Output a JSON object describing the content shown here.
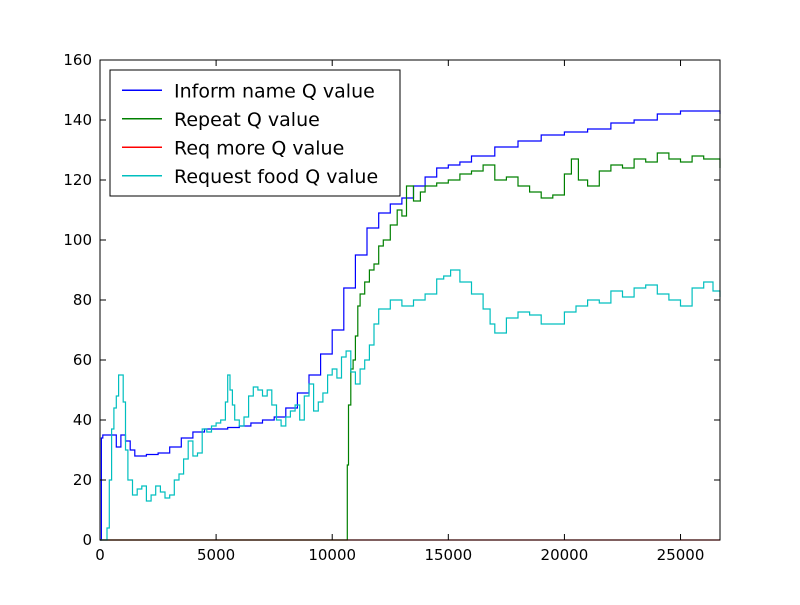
{
  "chart_data": {
    "type": "line",
    "title": "",
    "xlabel": "",
    "ylabel": "",
    "xlim": [
      0,
      26700
    ],
    "ylim": [
      0,
      160
    ],
    "grid": false,
    "legend_position": "top-left",
    "x_ticks": [
      0,
      5000,
      10000,
      15000,
      20000,
      25000
    ],
    "y_ticks": [
      0,
      20,
      40,
      60,
      80,
      100,
      120,
      140,
      160
    ],
    "x_tick_labels": [
      "0",
      "5000",
      "10000",
      "15000",
      "20000",
      "25000"
    ],
    "y_tick_labels": [
      "0",
      "20",
      "40",
      "60",
      "80",
      "100",
      "120",
      "140",
      "160"
    ],
    "series": [
      {
        "name": "Inform name Q value",
        "color": "#0000ff",
        "x": [
          0,
          60,
          120,
          300,
          500,
          700,
          900,
          1100,
          1300,
          1500,
          2000,
          2500,
          3000,
          3500,
          4000,
          4500,
          5000,
          5500,
          6000,
          6500,
          7000,
          7500,
          8000,
          8500,
          9000,
          9500,
          10000,
          10500,
          11000,
          11500,
          12000,
          12500,
          13000,
          13500,
          14000,
          14500,
          15000,
          15500,
          16000,
          17000,
          18000,
          19000,
          20000,
          21000,
          22000,
          23000,
          24000,
          25000,
          25500,
          26000,
          26700
        ],
        "y": [
          0,
          34,
          35,
          35,
          35,
          31,
          35,
          33,
          30,
          28,
          28.5,
          29,
          31,
          34,
          36,
          37,
          37,
          37.5,
          38,
          39,
          40,
          41,
          44,
          49,
          55,
          62,
          70,
          84,
          95,
          104,
          109,
          112,
          114,
          118,
          121,
          124,
          125,
          126,
          128,
          131,
          133,
          135,
          136,
          137,
          139,
          140,
          142,
          143,
          143,
          143,
          142
        ]
      },
      {
        "name": "Repeat Q value",
        "color": "#008000",
        "x": [
          0,
          10500,
          10600,
          10650,
          10700,
          10800,
          10900,
          11000,
          11100,
          11200,
          11400,
          11600,
          11800,
          12000,
          12200,
          12500,
          12800,
          13000,
          13200,
          13500,
          13800,
          14000,
          14500,
          15000,
          15500,
          16000,
          16500,
          17000,
          17500,
          18000,
          18500,
          19000,
          19500,
          20000,
          20300,
          20600,
          21000,
          21500,
          22000,
          22500,
          23000,
          23500,
          24000,
          24500,
          25000,
          25500,
          26000,
          26700
        ],
        "y": [
          0,
          0,
          0,
          25,
          45,
          57,
          60,
          68,
          78,
          82,
          86,
          90,
          92,
          98,
          100,
          105,
          110,
          108,
          118,
          113,
          116,
          118,
          119,
          120,
          122,
          123,
          125,
          120,
          121,
          118,
          116,
          114,
          115,
          122,
          127,
          120,
          118,
          123,
          125,
          124,
          127,
          126,
          129,
          127,
          126,
          128,
          127,
          124
        ]
      },
      {
        "name": "Req more Q value",
        "color": "#ff0000",
        "x": [
          0,
          26700
        ],
        "y": [
          0,
          0
        ]
      },
      {
        "name": "Request food Q value",
        "color": "#00bfbf",
        "x": [
          0,
          120,
          300,
          400,
          500,
          600,
          700,
          800,
          900,
          1000,
          1100,
          1200,
          1400,
          1600,
          1800,
          2000,
          2200,
          2400,
          2600,
          2800,
          3000,
          3200,
          3400,
          3600,
          3800,
          4000,
          4200,
          4400,
          4600,
          4800,
          5000,
          5200,
          5400,
          5500,
          5600,
          5700,
          5800,
          6000,
          6200,
          6400,
          6600,
          6800,
          7000,
          7200,
          7400,
          7600,
          7800,
          8000,
          8200,
          8400,
          8600,
          8800,
          9000,
          9200,
          9400,
          9600,
          9800,
          10000,
          10200,
          10400,
          10600,
          10800,
          11000,
          11200,
          11400,
          11600,
          11800,
          12000,
          12500,
          13000,
          13500,
          14000,
          14500,
          14800,
          15100,
          15500,
          16000,
          16500,
          16800,
          17000,
          17500,
          18000,
          18500,
          19000,
          19500,
          20000,
          20500,
          21000,
          21500,
          22000,
          22500,
          23000,
          23500,
          24000,
          24500,
          25000,
          25500,
          26000,
          26400,
          26700
        ],
        "y": [
          0,
          0,
          4,
          20,
          37,
          44,
          48,
          55,
          55,
          46,
          30,
          20,
          15,
          17,
          18,
          13,
          15,
          18,
          16,
          14,
          15,
          20,
          22,
          27,
          33,
          28,
          29,
          37,
          36,
          38,
          39,
          40,
          46,
          55,
          50,
          45,
          40,
          38,
          41,
          48,
          51,
          50,
          48,
          50,
          45,
          40,
          38,
          41,
          43,
          45,
          40,
          48,
          52,
          43,
          46,
          49,
          55,
          57,
          54,
          61,
          63,
          56,
          52,
          57,
          60,
          65,
          72,
          77,
          80,
          78,
          80,
          82,
          87,
          88,
          90,
          86,
          82,
          77,
          72,
          69,
          74,
          76,
          75,
          72,
          72,
          76,
          78,
          80,
          79,
          83,
          81,
          84,
          85,
          82,
          80,
          78,
          84,
          86,
          83,
          81
        ]
      }
    ]
  }
}
